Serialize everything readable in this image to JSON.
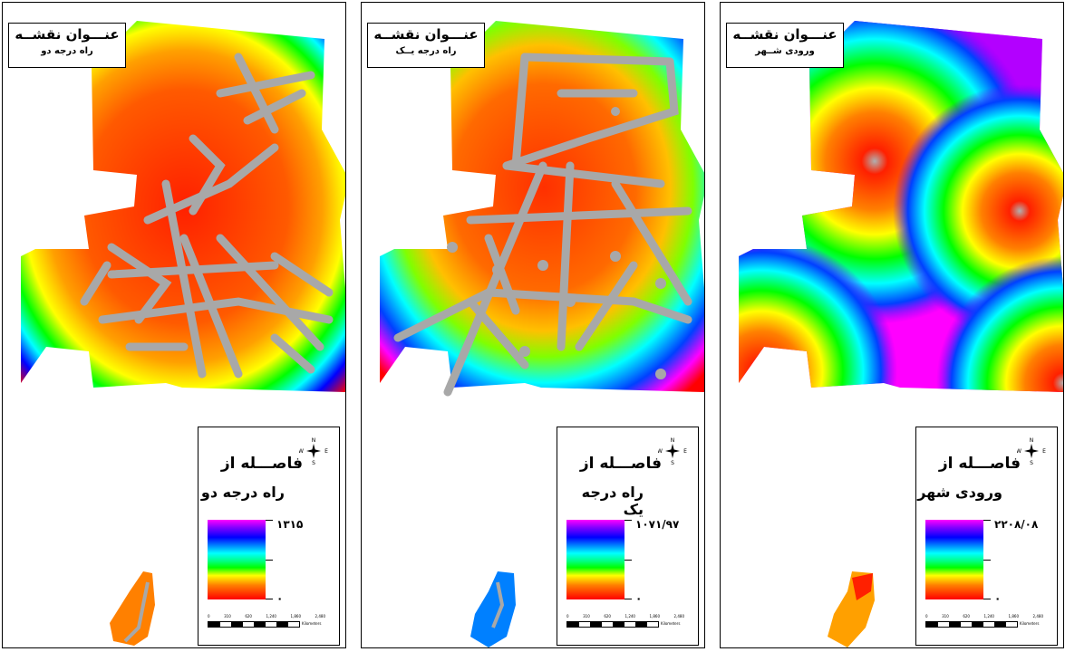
{
  "panels": [
    {
      "title": "عنـــوان نقشــه",
      "subtitle": "راه درجه دو",
      "legend_line1": "فاصـــله از",
      "legend_line2": "راه درجه دو",
      "legend_max": "۱۳۱۵",
      "legend_min": "۰",
      "map_style": "secondary-roads"
    },
    {
      "title": "عنـــوان نقشــه",
      "subtitle": "راه درجه یــک",
      "legend_line1": "فاصـــله از",
      "legend_line2": "راه درجه یک",
      "legend_max": "۱۰۷۱/۹۷",
      "legend_min": "۰",
      "map_style": "primary-roads"
    },
    {
      "title": "عنـــوان نقشــه",
      "subtitle": "ورودی شــهر",
      "legend_line1": "فاصـــله از",
      "legend_line2": "ورودی شهر",
      "legend_max": "۲۲۰۸/۰۸",
      "legend_min": "۰",
      "map_style": "city-entrances"
    }
  ],
  "north_arrow": {
    "n": "N",
    "s": "S",
    "e": "E",
    "w": "W"
  },
  "scale": {
    "ticks": [
      "0",
      "310",
      "620",
      "1,240",
      "1,860",
      "2,480"
    ],
    "unit": "Kilometers"
  },
  "colors": {
    "ramp": [
      "#ff00ff",
      "#0000ff",
      "#00ffff",
      "#00ff00",
      "#ffff00",
      "#ff8000",
      "#ff0000"
    ],
    "road": "#a8a8a8"
  }
}
